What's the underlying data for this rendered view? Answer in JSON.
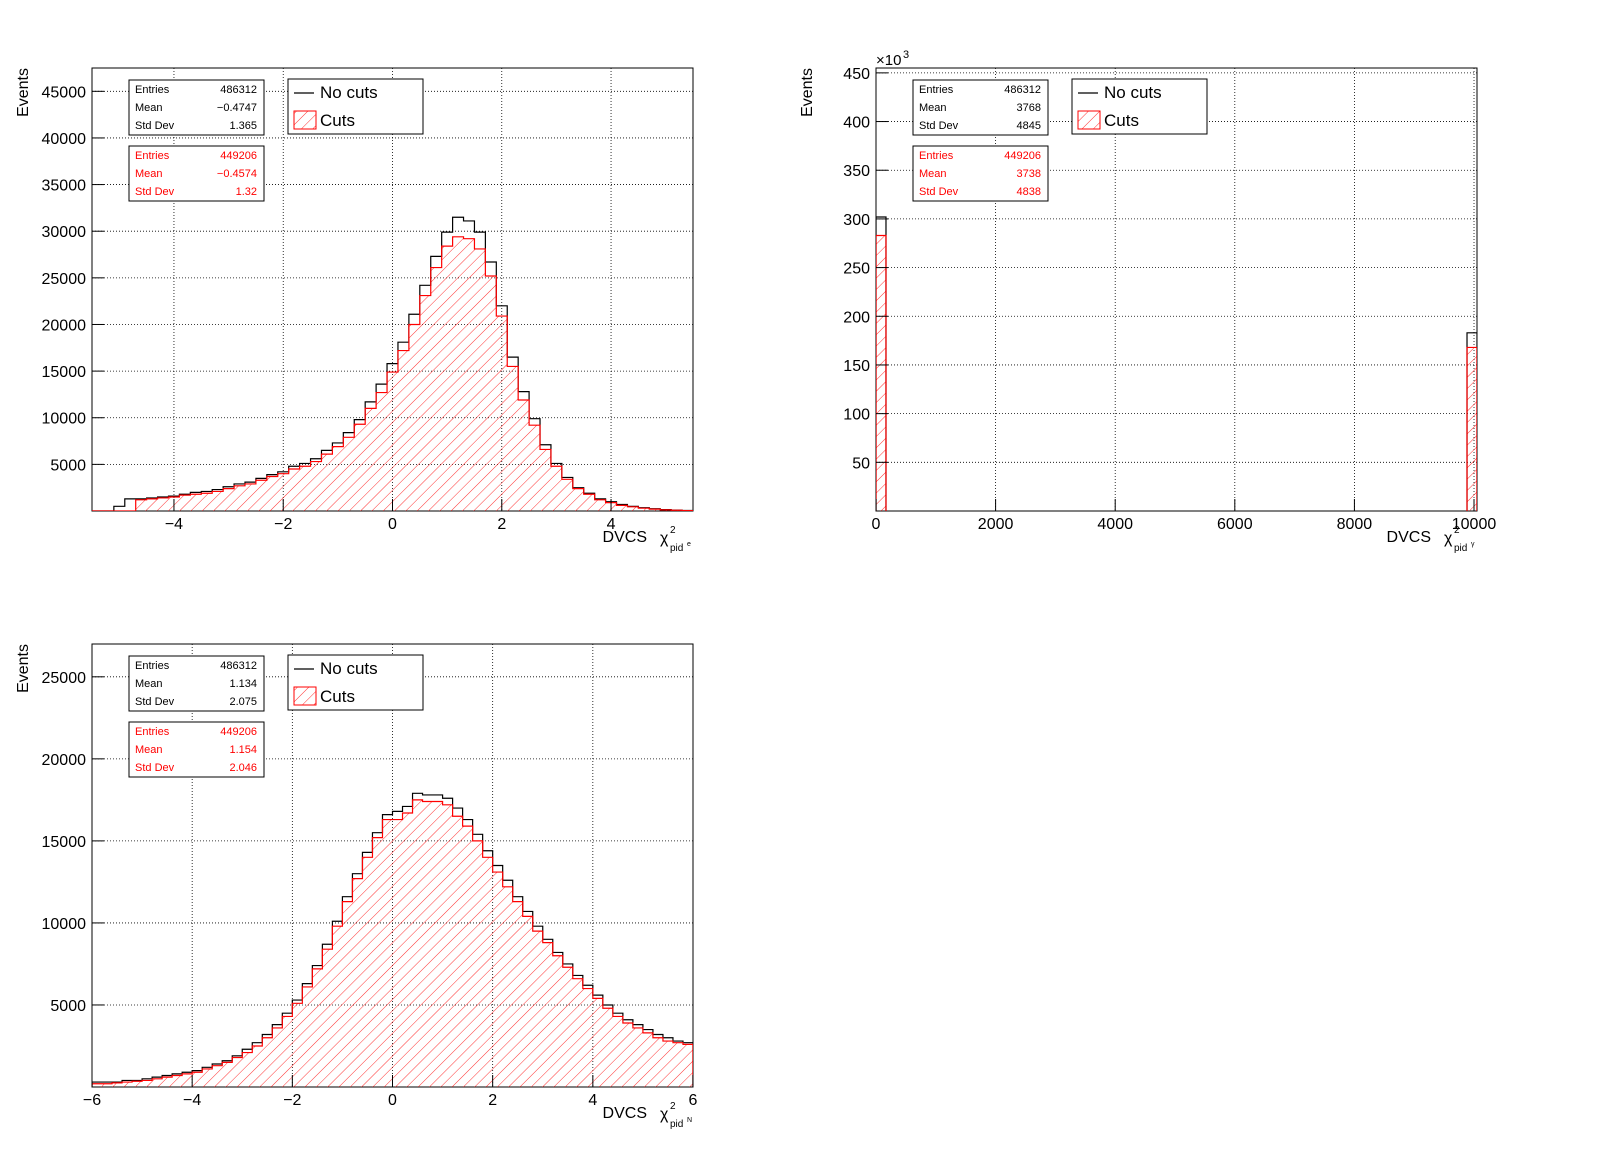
{
  "colors": {
    "no_cuts": "#000000",
    "cuts": "#ff0000",
    "hatch": "#ff0000"
  },
  "legend": {
    "no_cuts": "No cuts",
    "cuts": "Cuts"
  },
  "stats_labels": {
    "entries": "Entries",
    "mean": "Mean",
    "std": "Std Dev"
  },
  "chart_data": [
    {
      "type": "histogram",
      "xlabel": "DVCS",
      "xlabel_symbol": "χ",
      "xlabel_sub": "pid",
      "xlabel_subsup": "e",
      "ylabel": "Events",
      "xlim": [
        -5.5,
        5.5
      ],
      "ylim": [
        0,
        47500
      ],
      "xticks": [
        -4,
        -2,
        0,
        2,
        4
      ],
      "xtick_labels": [
        "−4",
        "−2",
        "0",
        "2",
        "4"
      ],
      "yticks": [
        5000,
        10000,
        15000,
        20000,
        25000,
        30000,
        35000,
        40000,
        45000
      ],
      "ytick_labels": [
        "5000",
        "10000",
        "15000",
        "20000",
        "25000",
        "30000",
        "35000",
        "40000",
        "45000"
      ],
      "grid": true,
      "legend_position": "top-left",
      "bins": {
        "start": -5.5,
        "width": 0.2
      },
      "stats": {
        "no_cuts": {
          "entries": "486312",
          "mean": "−0.4747",
          "std": "1.365"
        },
        "cuts": {
          "entries": "449206",
          "mean": "−0.4574",
          "std": "1.32"
        }
      },
      "series": [
        {
          "name": "No cuts",
          "values": [
            0,
            0,
            500,
            1300,
            1300,
            1400,
            1500,
            1600,
            1800,
            2000,
            2100,
            2300,
            2600,
            2900,
            3100,
            3500,
            3900,
            4200,
            4800,
            5100,
            5600,
            6500,
            7300,
            8400,
            9800,
            11700,
            13600,
            15800,
            18100,
            21100,
            24200,
            27300,
            29900,
            31500,
            31100,
            29900,
            26700,
            22000,
            16500,
            12800,
            9900,
            7100,
            5100,
            3600,
            2500,
            1900,
            1300,
            1000,
            700,
            500,
            350,
            250,
            150,
            100,
            50
          ]
        },
        {
          "name": "Cuts",
          "values": [
            0,
            0,
            0,
            0,
            1200,
            1300,
            1400,
            1500,
            1700,
            1800,
            1900,
            2100,
            2400,
            2700,
            2900,
            3300,
            3700,
            4000,
            4500,
            4800,
            5300,
            6100,
            6900,
            7900,
            9300,
            11000,
            12700,
            14900,
            17200,
            20000,
            23100,
            26100,
            28400,
            29400,
            29200,
            28100,
            25200,
            20900,
            15500,
            11900,
            9200,
            6600,
            4800,
            3400,
            2400,
            1800,
            1200,
            900,
            600,
            450,
            300,
            200,
            120,
            80,
            40
          ]
        }
      ]
    },
    {
      "type": "histogram",
      "xlabel": "DVCS",
      "xlabel_symbol": "χ",
      "xlabel_sub": "pid",
      "xlabel_subsup": "γ",
      "ylabel": "Events",
      "axis_multiplier": "×10",
      "axis_multiplier_exp": "3",
      "xlim": [
        0,
        10050
      ],
      "ylim": [
        0,
        455
      ],
      "xticks": [
        0,
        2000,
        4000,
        6000,
        8000,
        10000
      ],
      "xtick_labels": [
        "0",
        "2000",
        "4000",
        "6000",
        "8000",
        "10000"
      ],
      "yticks": [
        50,
        100,
        150,
        200,
        250,
        300,
        350,
        400,
        450
      ],
      "ytick_labels": [
        "50",
        "100",
        "150",
        "200",
        "250",
        "300",
        "350",
        "400",
        "450"
      ],
      "grid": true,
      "legend_position": "top-left",
      "stats": {
        "no_cuts": {
          "entries": "486312",
          "mean": "3768",
          "std": "4845"
        },
        "cuts": {
          "entries": "449206",
          "mean": "3738",
          "std": "4838"
        }
      },
      "series": [
        {
          "name": "No cuts",
          "bars": [
            {
              "x0": 0,
              "x1": 167,
              "y": 302
            },
            {
              "x0": 9883,
              "x1": 10050,
              "y": 183
            }
          ]
        },
        {
          "name": "Cuts",
          "bars": [
            {
              "x0": 0,
              "x1": 167,
              "y": 283
            },
            {
              "x0": 9883,
              "x1": 10050,
              "y": 168
            }
          ]
        }
      ]
    },
    {
      "type": "histogram",
      "xlabel": "DVCS",
      "xlabel_symbol": "χ",
      "xlabel_sub": "pid",
      "xlabel_subsup": "N",
      "ylabel": "Events",
      "xlim": [
        -6,
        6
      ],
      "ylim": [
        0,
        27000
      ],
      "xticks": [
        -6,
        -4,
        -2,
        0,
        2,
        4,
        6
      ],
      "xtick_labels": [
        "−6",
        "−4",
        "−2",
        "0",
        "2",
        "4",
        "6"
      ],
      "yticks": [
        5000,
        10000,
        15000,
        20000,
        25000
      ],
      "ytick_labels": [
        "5000",
        "10000",
        "15000",
        "20000",
        "25000"
      ],
      "grid": true,
      "legend_position": "top-left",
      "bins": {
        "start": -6,
        "width": 0.2
      },
      "stats": {
        "no_cuts": {
          "entries": "486312",
          "mean": "1.134",
          "std": "2.075"
        },
        "cuts": {
          "entries": "449206",
          "mean": "1.154",
          "std": "2.046"
        }
      },
      "series": [
        {
          "name": "No cuts",
          "values": [
            300,
            300,
            300,
            400,
            400,
            500,
            600,
            700,
            800,
            900,
            1000,
            1200,
            1400,
            1600,
            1900,
            2300,
            2700,
            3200,
            3800,
            4500,
            5300,
            6300,
            7400,
            8700,
            10100,
            11600,
            13000,
            14300,
            15500,
            16600,
            16800,
            17100,
            17900,
            17800,
            17800,
            17600,
            17000,
            16300,
            15400,
            14400,
            13500,
            12600,
            11600,
            10700,
            9800,
            9000,
            8200,
            7500,
            6800,
            6200,
            5600,
            5000,
            4500,
            4100,
            3800,
            3500,
            3200,
            3000,
            2800,
            2700
          ]
        },
        {
          "name": "Cuts",
          "values": [
            200,
            200,
            250,
            300,
            350,
            400,
            500,
            600,
            700,
            800,
            900,
            1100,
            1300,
            1500,
            1800,
            2100,
            2500,
            3000,
            3600,
            4300,
            5100,
            6100,
            7200,
            8400,
            9800,
            11300,
            12700,
            14000,
            15200,
            16300,
            16300,
            16700,
            17500,
            17400,
            17400,
            17200,
            16500,
            15900,
            15000,
            14000,
            13100,
            12200,
            11300,
            10400,
            9500,
            8800,
            8000,
            7300,
            6600,
            6000,
            5400,
            4800,
            4300,
            3900,
            3600,
            3300,
            3000,
            2800,
            2700,
            2600
          ]
        }
      ]
    }
  ]
}
